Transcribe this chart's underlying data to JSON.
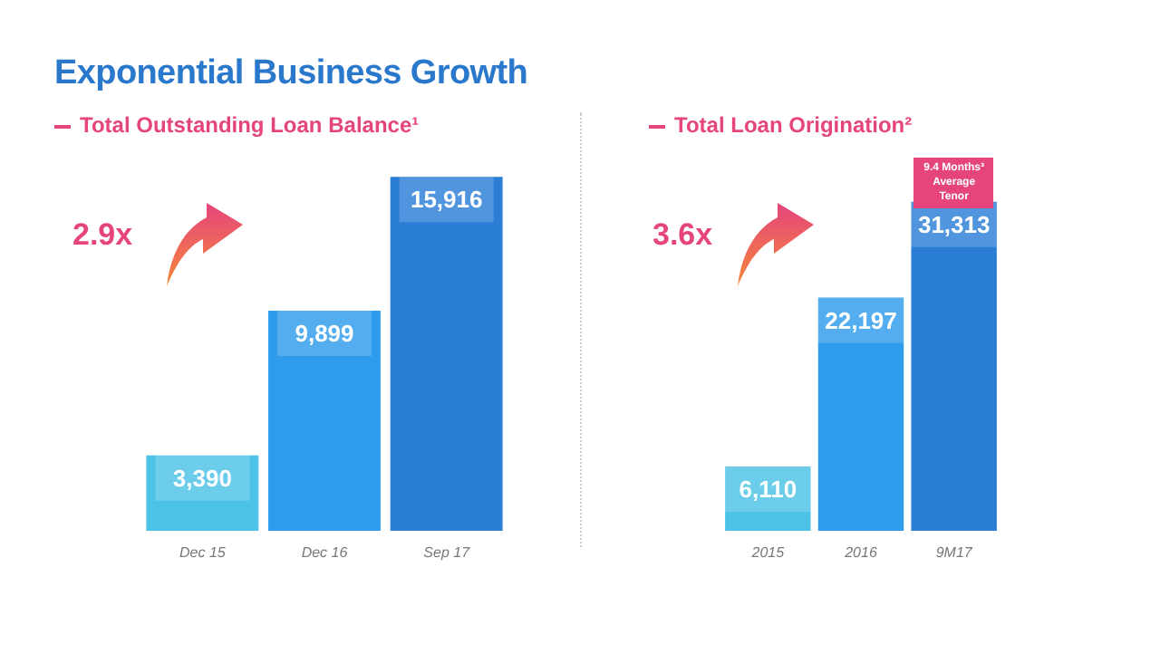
{
  "chart_data": [
    {
      "type": "bar",
      "title": "Exponential Business Growth",
      "subtitle": "Total Outstanding Loan Balance¹",
      "categories": [
        "Dec 15",
        "Dec 16",
        "Sep 17"
      ],
      "values": [
        3390,
        9899,
        15916
      ],
      "value_labels": [
        "3,390",
        "9,899",
        "15,916"
      ],
      "colors": [
        "#4cc3e6",
        "#2f9bec",
        "#2a7ed6"
      ],
      "annotations": [
        "2.9x"
      ]
    },
    {
      "type": "bar",
      "title": "Total Loan Origination²",
      "categories": [
        "2015",
        "2016",
        "9M17"
      ],
      "values": [
        6110,
        22197,
        31313
      ],
      "value_labels": [
        "6,110",
        "22,197",
        "31,313"
      ],
      "colors": [
        "#4cc3e6",
        "#2f9bec",
        "#2a7ed6"
      ],
      "annotations": [
        "3.6x",
        "9.4 Months³ Average Tenor"
      ]
    }
  ]
}
